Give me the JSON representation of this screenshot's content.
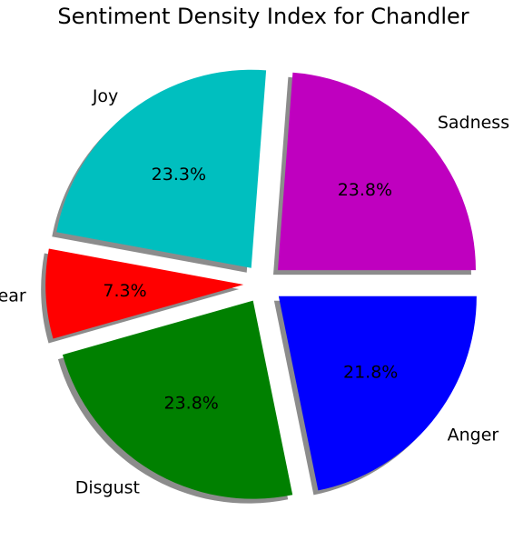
{
  "chart_data": {
    "type": "pie",
    "title": "Sentiment Density Index for Chandler",
    "categories": [
      "Sadness",
      "Joy",
      "Fear",
      "Disgust",
      "Anger"
    ],
    "values": [
      23.8,
      23.3,
      7.3,
      23.8,
      21.8
    ],
    "value_labels": [
      "23.8%",
      "23.3%",
      "7.3%",
      "23.8%",
      "21.8%"
    ],
    "colors": [
      "#bf00bf",
      "#00bfbf",
      "#ff0000",
      "#008000",
      "#0000ff"
    ],
    "exploded": true,
    "shadow": true,
    "start_angle_deg": 0,
    "direction": "counterclockwise",
    "legend": "none"
  }
}
